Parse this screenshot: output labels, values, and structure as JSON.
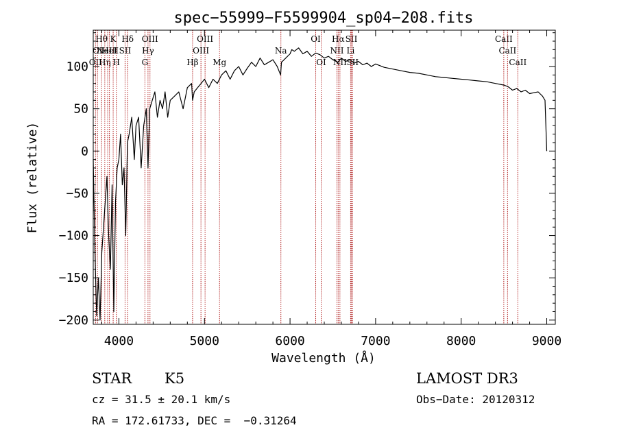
{
  "chart_data": {
    "type": "line",
    "title": "spec−55999−F5599904_sp04−208.fits",
    "xlabel": "Wavelength (Å)",
    "ylabel": "Flux (relative)",
    "xlim": [
      3700,
      9100
    ],
    "ylim": [
      -205,
      143
    ],
    "x_ticks": [
      4000,
      5000,
      6000,
      7000,
      8000,
      9000
    ],
    "y_ticks": [
      -200,
      -150,
      -100,
      -50,
      0,
      50,
      100
    ],
    "series": [
      {
        "name": "flux",
        "x": [
          3700,
          3720,
          3740,
          3760,
          3780,
          3800,
          3820,
          3840,
          3860,
          3880,
          3900,
          3920,
          3940,
          3960,
          3980,
          4000,
          4020,
          4040,
          4060,
          4080,
          4100,
          4120,
          4150,
          4180,
          4200,
          4230,
          4260,
          4290,
          4320,
          4340,
          4360,
          4390,
          4420,
          4450,
          4480,
          4510,
          4540,
          4570,
          4600,
          4650,
          4700,
          4750,
          4800,
          4850,
          4861,
          4880,
          4920,
          4960,
          5000,
          5050,
          5100,
          5150,
          5200,
          5250,
          5300,
          5350,
          5400,
          5450,
          5500,
          5550,
          5600,
          5650,
          5700,
          5750,
          5800,
          5850,
          5890,
          5900,
          5950,
          6000,
          6020,
          6050,
          6100,
          6150,
          6200,
          6250,
          6300,
          6350,
          6400,
          6450,
          6500,
          6560,
          6600,
          6650,
          6700,
          6750,
          6800,
          6850,
          6900,
          6950,
          7000,
          7100,
          7200,
          7300,
          7400,
          7500,
          7600,
          7700,
          7800,
          7900,
          8000,
          8100,
          8200,
          8300,
          8400,
          8500,
          8550,
          8600,
          8650,
          8700,
          8750,
          8800,
          8850,
          8900,
          8950,
          8980,
          9000
        ],
        "values": [
          -10,
          -120,
          -195,
          -150,
          -200,
          -120,
          -90,
          -60,
          -30,
          -100,
          -140,
          -40,
          -190,
          -60,
          -20,
          -10,
          20,
          -40,
          -20,
          -100,
          10,
          20,
          40,
          -10,
          30,
          40,
          -20,
          30,
          50,
          -20,
          50,
          60,
          70,
          40,
          60,
          50,
          70,
          40,
          60,
          65,
          70,
          50,
          75,
          80,
          60,
          70,
          75,
          80,
          85,
          75,
          85,
          80,
          90,
          95,
          85,
          95,
          100,
          90,
          98,
          105,
          100,
          110,
          102,
          105,
          108,
          100,
          90,
          105,
          110,
          115,
          120,
          118,
          122,
          115,
          118,
          112,
          116,
          114,
          110,
          112,
          108,
          105,
          110,
          106,
          108,
          104,
          106,
          102,
          104,
          100,
          103,
          99,
          97,
          95,
          93,
          92,
          90,
          88,
          87,
          86,
          85,
          84,
          83,
          82,
          80,
          78,
          76,
          72,
          74,
          70,
          72,
          68,
          69,
          70,
          65,
          60,
          0
        ]
      }
    ],
    "line_markers": [
      {
        "wavelength": 3727,
        "label": "OII",
        "row": 3
      },
      {
        "wavelength": 3750,
        "label": "OI",
        "row": 2
      },
      {
        "wavelength": 3797,
        "label": "Hθ",
        "row": 1
      },
      {
        "wavelength": 3835,
        "label": "Hη",
        "row": 3
      },
      {
        "wavelength": 3869,
        "label": "NeIII",
        "row": 2
      },
      {
        "wavelength": 3889,
        "label": "HeI",
        "row": 2
      },
      {
        "wavelength": 3933,
        "label": "K",
        "row": 1
      },
      {
        "wavelength": 3970,
        "label": "H",
        "row": 3
      },
      {
        "wavelength": 4072,
        "label": "SII",
        "row": 2
      },
      {
        "wavelength": 4102,
        "label": "Hδ",
        "row": 1
      },
      {
        "wavelength": 4304,
        "label": "G",
        "row": 3
      },
      {
        "wavelength": 4340,
        "label": "Hγ",
        "row": 2
      },
      {
        "wavelength": 4363,
        "label": "OIII",
        "row": 1
      },
      {
        "wavelength": 4861,
        "label": "Hβ",
        "row": 3
      },
      {
        "wavelength": 4959,
        "label": "OIII",
        "row": 2
      },
      {
        "wavelength": 5007,
        "label": "OIII",
        "row": 1
      },
      {
        "wavelength": 5176,
        "label": "Mg",
        "row": 3
      },
      {
        "wavelength": 5893,
        "label": "Na",
        "row": 2
      },
      {
        "wavelength": 6300,
        "label": "OI",
        "row": 1
      },
      {
        "wavelength": 6364,
        "label": "OI",
        "row": 3
      },
      {
        "wavelength": 6548,
        "label": "NII",
        "row": 2
      },
      {
        "wavelength": 6563,
        "label": "Hα",
        "row": 1
      },
      {
        "wavelength": 6583,
        "label": "NII",
        "row": 3
      },
      {
        "wavelength": 6717,
        "label": "SII",
        "row": 1
      },
      {
        "wavelength": 6731,
        "label": "SII",
        "row": 3
      },
      {
        "wavelength": 6708,
        "label": "Li",
        "row": 2
      },
      {
        "wavelength": 8498,
        "label": "CaII",
        "row": 1
      },
      {
        "wavelength": 8542,
        "label": "CaII",
        "row": 2
      },
      {
        "wavelength": 8662,
        "label": "CaII",
        "row": 3
      }
    ],
    "grid": false,
    "legend": "none"
  },
  "info": {
    "class": "STAR",
    "subclass": "K5",
    "survey": "LAMOST DR3",
    "redshift": "cz = 31.5 ± 20.1 km/s",
    "obs_date": "Obs−Date: 20120312",
    "coords": "RA = 172.61733, DEC =  −0.31264"
  },
  "colors": {
    "spectrum": "#000000",
    "marker_line": "#b22222"
  }
}
